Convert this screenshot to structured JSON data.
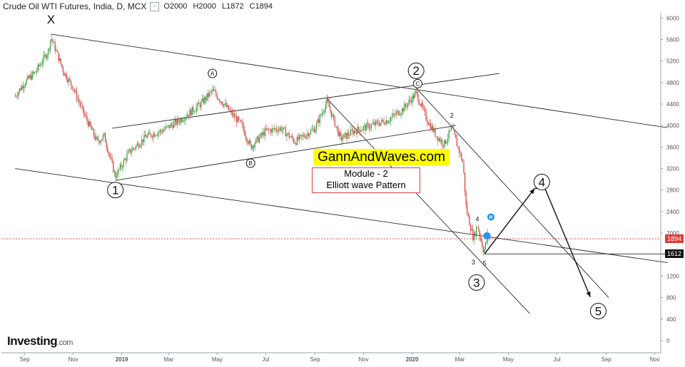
{
  "header": {
    "title": "Crude Oil WTI Futures, India, D, MCX",
    "open": "O2000",
    "high": "H2000",
    "low": "L1872",
    "close": "C1894"
  },
  "brand": {
    "name": "Investing",
    "domain": ".com"
  },
  "overlay": {
    "site": "GannAndWaves.com",
    "module_line1": "Module - 2",
    "module_line2": "Elliott wave Pattern"
  },
  "price_tags": {
    "last": "1894",
    "level": "1612",
    "last_color": "#e53935",
    "level_color": "#111111"
  },
  "chart_data": {
    "type": "candlestick",
    "x_ticks": [
      "Sep",
      "Nov",
      "2019",
      "Mar",
      "May",
      "Jul",
      "Sep",
      "Nov",
      "2020",
      "Mar",
      "May",
      "Jul",
      "Sep",
      "Nov"
    ],
    "y_ticks": [
      0,
      400,
      800,
      1200,
      1612,
      2000,
      2400,
      2800,
      3200,
      3600,
      4000,
      4400,
      4800,
      5200,
      5600,
      6000
    ],
    "ylim": [
      -120,
      6150
    ],
    "last_price": 1894,
    "support_level": 1612,
    "price_path": [
      {
        "t": "2018-08-20",
        "v": 4550
      },
      {
        "t": "2018-09-01",
        "v": 4800
      },
      {
        "t": "2018-09-15",
        "v": 5000
      },
      {
        "t": "2018-10-01",
        "v": 5400
      },
      {
        "t": "2018-10-04",
        "v": 5650
      },
      {
        "t": "2018-10-20",
        "v": 5000
      },
      {
        "t": "2018-11-01",
        "v": 4700
      },
      {
        "t": "2018-11-15",
        "v": 4200
      },
      {
        "t": "2018-12-01",
        "v": 3700
      },
      {
        "t": "2018-12-10",
        "v": 3800
      },
      {
        "t": "2018-12-24",
        "v": 3050
      },
      {
        "t": "2019-01-10",
        "v": 3500
      },
      {
        "t": "2019-02-01",
        "v": 3800
      },
      {
        "t": "2019-02-20",
        "v": 3900
      },
      {
        "t": "2019-03-15",
        "v": 4100
      },
      {
        "t": "2019-04-10",
        "v": 4400
      },
      {
        "t": "2019-04-25",
        "v": 4650
      },
      {
        "t": "2019-05-15",
        "v": 4300
      },
      {
        "t": "2019-06-01",
        "v": 4000
      },
      {
        "t": "2019-06-12",
        "v": 3600
      },
      {
        "t": "2019-07-01",
        "v": 3900
      },
      {
        "t": "2019-07-20",
        "v": 3950
      },
      {
        "t": "2019-08-07",
        "v": 3700
      },
      {
        "t": "2019-09-01",
        "v": 3950
      },
      {
        "t": "2019-09-16",
        "v": 4450
      },
      {
        "t": "2019-10-03",
        "v": 3750
      },
      {
        "t": "2019-10-20",
        "v": 3900
      },
      {
        "t": "2019-11-10",
        "v": 4000
      },
      {
        "t": "2019-12-01",
        "v": 4100
      },
      {
        "t": "2019-12-20",
        "v": 4300
      },
      {
        "t": "2020-01-06",
        "v": 4600
      },
      {
        "t": "2020-01-20",
        "v": 4100
      },
      {
        "t": "2020-02-01",
        "v": 3800
      },
      {
        "t": "2020-02-10",
        "v": 3650
      },
      {
        "t": "2020-02-20",
        "v": 3950
      },
      {
        "t": "2020-03-05",
        "v": 3300
      },
      {
        "t": "2020-03-09",
        "v": 2450
      },
      {
        "t": "2020-03-18",
        "v": 1900
      },
      {
        "t": "2020-03-23",
        "v": 2150
      },
      {
        "t": "2020-03-31",
        "v": 1650
      },
      {
        "t": "2020-04-06",
        "v": 2000
      },
      {
        "t": "2020-04-09",
        "v": 1894
      }
    ],
    "wave_labels": [
      {
        "label": "X",
        "t": "2018-10-04",
        "v": 5900
      },
      {
        "label": "1",
        "t": "2018-12-24",
        "v": 2800,
        "circled": true
      },
      {
        "label": "A",
        "t": "2019-04-25",
        "v": 4970,
        "circled": true
      },
      {
        "label": "B",
        "t": "2019-06-12",
        "v": 3300,
        "circled": true
      },
      {
        "label": "2",
        "t": "2020-01-06",
        "v": 5020,
        "circled": true
      },
      {
        "label": "C",
        "t": "2020-01-08",
        "v": 4780,
        "circled": true
      },
      {
        "label": "2",
        "t": "2020-02-20",
        "v": 4150
      },
      {
        "label": "4",
        "t": "2020-03-23",
        "v": 2220
      },
      {
        "label": "3",
        "t": "2020-03-18",
        "v": 1420
      },
      {
        "label": "5",
        "t": "2020-04-01",
        "v": 1400
      },
      {
        "label": "3",
        "t": "2020-03-22",
        "v": 1080,
        "circled": true
      },
      {
        "label": "4",
        "t": "2020-06-12",
        "v": 2950,
        "circled": true
      },
      {
        "label": "5",
        "t": "2020-08-22",
        "v": 550,
        "circled": true
      }
    ],
    "projection": [
      {
        "t": "2020-04-01",
        "v": 1612
      },
      {
        "t": "2020-06-03",
        "v": 2830
      },
      {
        "t": "2020-06-16",
        "v": 2830
      },
      {
        "t": "2020-08-12",
        "v": 810
      }
    ],
    "trendlines": [
      {
        "t1": "2018-10-04",
        "v1": 5700,
        "t2": "2020-11-17",
        "v2": 3960
      },
      {
        "t1": "2018-08-20",
        "v1": 3200,
        "t2": "2020-11-17",
        "v2": 1450
      },
      {
        "t1": "2018-12-20",
        "v1": 3950,
        "t2": "2020-04-20",
        "v2": 4970
      },
      {
        "t1": "2018-12-24",
        "v1": 2980,
        "t2": "2020-02-25",
        "v2": 4000
      },
      {
        "t1": "2019-09-16",
        "v1": 4500,
        "t2": "2020-05-28",
        "v2": 500
      },
      {
        "t1": "2020-01-06",
        "v1": 4700,
        "t2": "2020-09-04",
        "v2": 800
      },
      {
        "t1": "2020-04-01",
        "v1": 1612,
        "t2": "2020-11-17",
        "v2": 1612
      }
    ]
  }
}
